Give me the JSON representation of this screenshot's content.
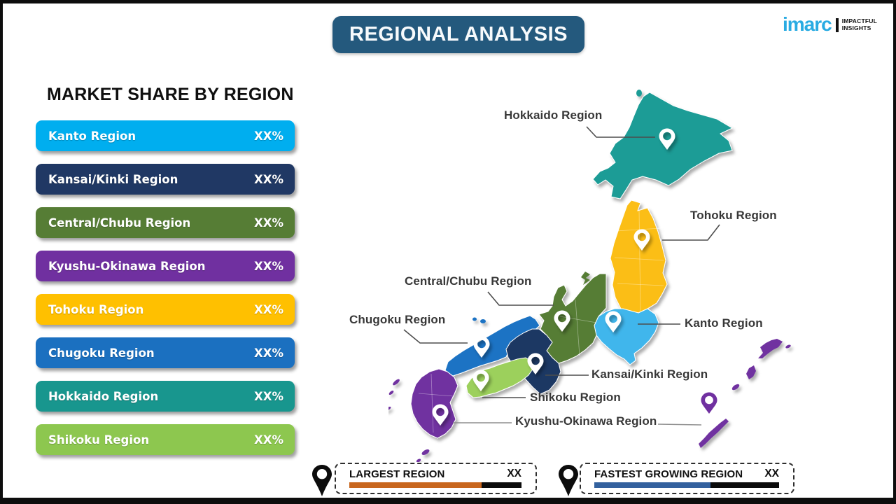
{
  "header": {
    "title": "REGIONAL ANALYSIS",
    "title_bg": "#24597d",
    "logo": {
      "brand": "imarc",
      "brand_color": "#29abe2",
      "tagline_line1": "IMPACTFUL",
      "tagline_line2": "INSIGHTS"
    }
  },
  "market_share": {
    "heading": "MARKET SHARE BY REGION",
    "items": [
      {
        "label": "Kanto Region",
        "value": "XX%",
        "color": "#00aeef"
      },
      {
        "label": "Kansai/Kinki Region",
        "value": "XX%",
        "color": "#203864"
      },
      {
        "label": "Central/Chubu Region",
        "value": "XX%",
        "color": "#567d35"
      },
      {
        "label": "Kyushu-Okinawa Region",
        "value": "XX%",
        "color": "#7030a0"
      },
      {
        "label": "Tohoku Region",
        "value": "XX%",
        "color": "#ffc000"
      },
      {
        "label": "Chugoku Region",
        "value": "XX%",
        "color": "#1b70c0"
      },
      {
        "label": "Hokkaido Region",
        "value": "XX%",
        "color": "#18968e"
      },
      {
        "label": "Shikoku Region",
        "value": "XX%",
        "color": "#8dc74f"
      }
    ]
  },
  "map": {
    "region_colors": {
      "hokkaido": "#1d9c96",
      "tohoku": "#fbbe16",
      "kanto": "#41b6ec",
      "chubu": "#567d35",
      "kansai": "#1f3864",
      "chugoku": "#1c73c4",
      "shikoku": "#9cd05c",
      "kyushu_okinawa": "#7030a0"
    },
    "pin_color": "#ffffff",
    "connector_color": "#4d4d4d",
    "connector_color_light": "#8f8f8f",
    "labels": {
      "hokkaido": "Hokkaido Region",
      "tohoku": "Tohoku Region",
      "chubu": "Central/Chubu Region",
      "chugoku": "Chugoku Region",
      "kanto": "Kanto Region",
      "kansai": "Kansai/Kinki Region",
      "shikoku": "Shikoku Region",
      "kyushu": "Kyushu-Okinawa Region"
    }
  },
  "legend": {
    "pin_color": "#0c0c0c",
    "track_color": "#0b0b0b",
    "largest": {
      "label": "LARGEST REGION",
      "value": "XX",
      "bar_color": "#c8661e",
      "bar_fill_pct": 77
    },
    "fastest": {
      "label": "FASTEST GROWING REGION",
      "value": "XX",
      "bar_color": "#33619e",
      "bar_fill_pct": 63
    }
  }
}
